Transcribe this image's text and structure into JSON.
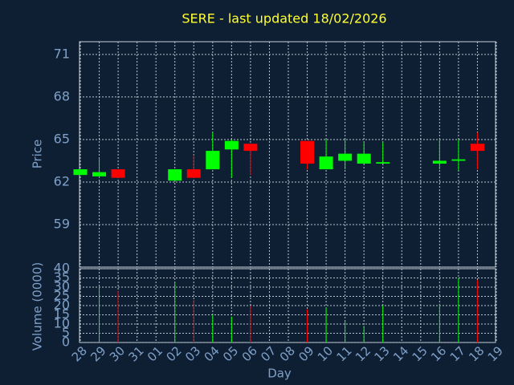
{
  "chart_data": [
    {
      "type": "candlestick",
      "title": "SERE - last updated 18/02/2026",
      "ylabel": "Price",
      "categories": [
        "28",
        "29",
        "30",
        "31",
        "01",
        "02",
        "03",
        "04",
        "05",
        "06",
        "07",
        "08",
        "09",
        "10",
        "11",
        "12",
        "13",
        "14",
        "15",
        "16",
        "17",
        "18",
        "19"
      ],
      "open": [
        62.5,
        62.4,
        62.9,
        null,
        null,
        62.1,
        62.9,
        62.9,
        64.3,
        64.7,
        null,
        null,
        64.9,
        62.9,
        63.5,
        63.3,
        63.3,
        null,
        null,
        63.3,
        63.5,
        64.7,
        null
      ],
      "high": [
        62.9,
        63.7,
        62.9,
        null,
        null,
        62.9,
        63.9,
        65.5,
        65.0,
        64.7,
        null,
        null,
        64.9,
        65.0,
        65.0,
        64.8,
        64.8,
        null,
        null,
        65.0,
        65.0,
        65.5,
        null
      ],
      "low": [
        62.5,
        62.3,
        62.3,
        null,
        null,
        62.0,
        62.3,
        62.9,
        62.3,
        62.5,
        null,
        null,
        62.9,
        62.9,
        62.9,
        63.3,
        63.3,
        null,
        null,
        62.9,
        62.8,
        62.9,
        null
      ],
      "close": [
        62.9,
        62.7,
        62.3,
        null,
        null,
        62.9,
        62.3,
        64.2,
        64.9,
        64.2,
        null,
        null,
        63.3,
        63.8,
        64.0,
        64.0,
        63.4,
        null,
        null,
        63.5,
        63.6,
        64.2,
        null
      ],
      "ylim": [
        56,
        71.9
      ],
      "yticks": [
        59,
        62,
        65,
        68,
        71
      ],
      "grid": true,
      "up_color": "#00ff00",
      "down_color": "#ff0000"
    },
    {
      "type": "bar",
      "ylabel": "Volume (0000)",
      "xlabel": "Day",
      "values": [
        null,
        30,
        28,
        null,
        null,
        33,
        23,
        15,
        14,
        20,
        null,
        null,
        18,
        19,
        12,
        9,
        20,
        null,
        null,
        21,
        35,
        34,
        null
      ],
      "ylim": [
        0,
        40
      ],
      "yticks": [
        0,
        5,
        10,
        15,
        20,
        25,
        30,
        35,
        40
      ],
      "grid": true
    }
  ]
}
